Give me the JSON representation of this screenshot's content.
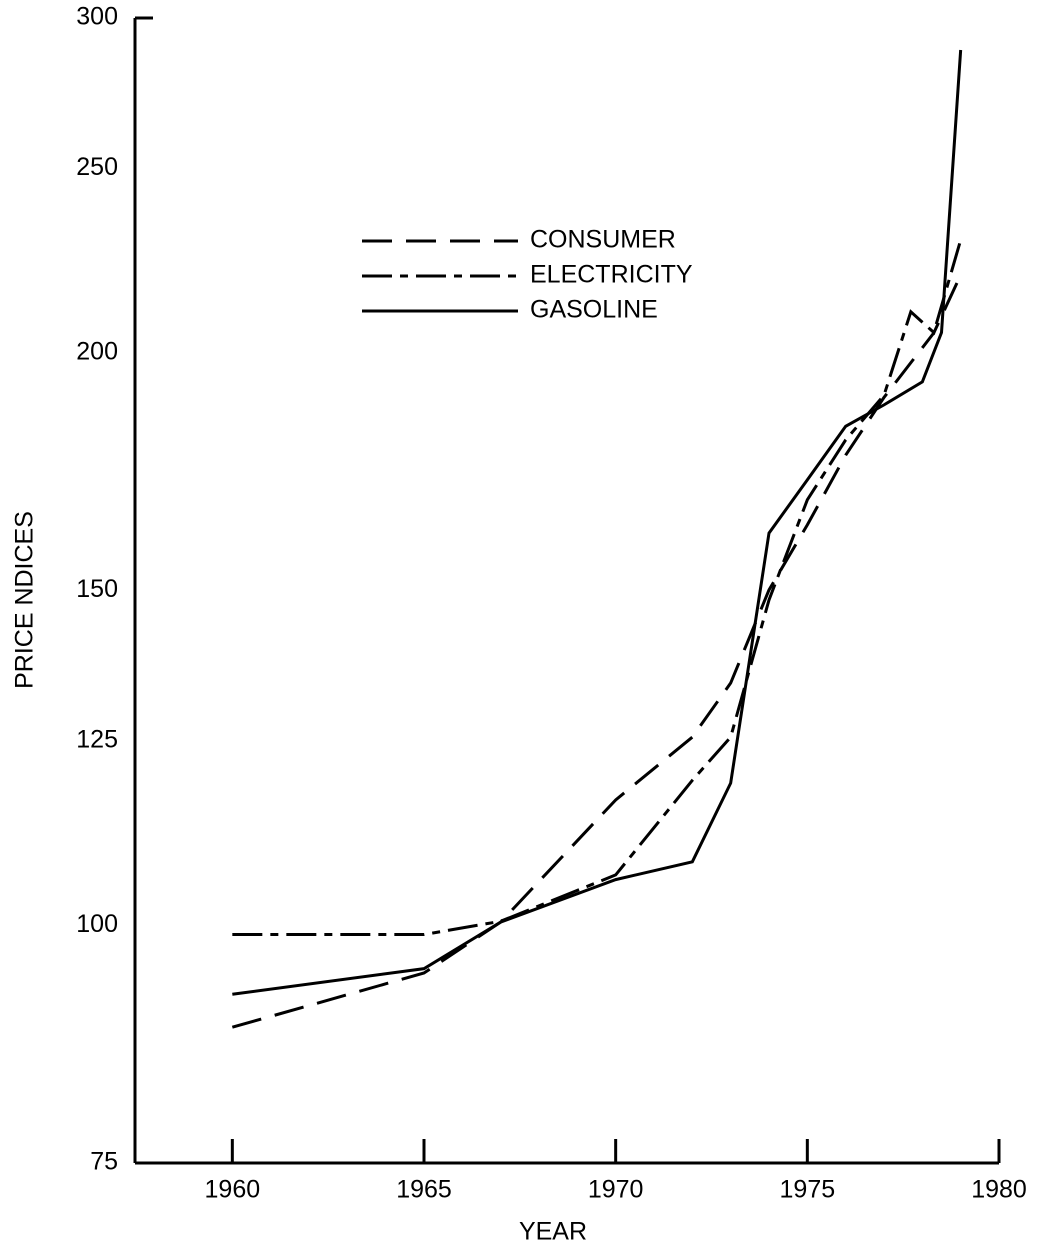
{
  "chart_data": {
    "type": "line",
    "xlabel": "YEAR",
    "ylabel": "PRICE  NDICES",
    "ylog": true,
    "xlim": [
      1957.8,
      1980
    ],
    "xticks": [
      1960,
      1965,
      1970,
      1975,
      1980
    ],
    "ylim": [
      75,
      300
    ],
    "yticks": [
      75,
      100,
      125,
      150,
      200,
      250,
      300
    ],
    "legend": "upper center",
    "series": [
      {
        "name": "CONSUMER",
        "color": "#000000",
        "dash": "30,14",
        "x": [
          1960,
          1965,
          1967,
          1970,
          1972,
          1973,
          1974,
          1975,
          1976,
          1977,
          1978.3,
          1979
        ],
        "values": [
          88.4,
          94.4,
          100.4,
          116.4,
          125.6,
          134.1,
          150.1,
          162.4,
          176.7,
          189.5,
          204.9,
          219.8
        ]
      },
      {
        "name": "ELECTRICITY",
        "color": "#000000",
        "dash": "30,8,8,8",
        "x": [
          1960,
          1965,
          1967,
          1970,
          1972,
          1973,
          1974,
          1975,
          1976,
          1977,
          1977.7,
          1978.3,
          1979
        ],
        "values": [
          98.9,
          98.9,
          100.5,
          106.3,
          119.2,
          125.6,
          148.3,
          167.4,
          180,
          190,
          210.2,
          205,
          229.3
        ]
      },
      {
        "name": "GASOLINE",
        "color": "#000000",
        "dash": "none",
        "x": [
          1960,
          1965,
          1967,
          1970,
          1972,
          1973,
          1974,
          1975,
          1976,
          1977,
          1978,
          1978.5,
          1979
        ],
        "values": [
          92,
          94.9,
          100.4,
          105.7,
          108,
          118.8,
          160.8,
          171.5,
          183,
          187.8,
          193.1,
          205,
          288.6
        ]
      }
    ]
  }
}
